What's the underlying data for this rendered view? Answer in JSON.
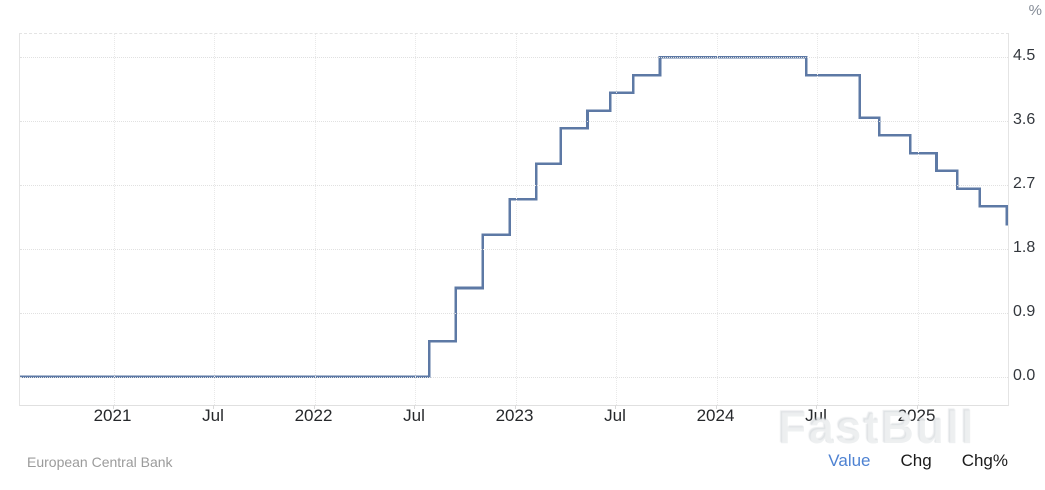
{
  "unit_label": "%",
  "watermark_text": "FastBull",
  "footer": {
    "source": "European Central Bank",
    "legend": [
      {
        "label": "Value",
        "active": true
      },
      {
        "label": "Chg",
        "active": false
      },
      {
        "label": "Chg%",
        "active": false
      }
    ]
  },
  "colors": {
    "line": "#5d79a5",
    "legend_active": "#4e82d2",
    "legend_inactive": "#1b1b1b",
    "grid_h": "#e1e1e1",
    "grid_v": "#e9e9e9"
  },
  "chart_data": {
    "type": "line",
    "subtype": "step-after",
    "title": "",
    "ylabel": "%",
    "source": "European Central Bank",
    "grid": true,
    "legend_position": "bottom-right",
    "xlim": [
      2020.535,
      2025.45
    ],
    "ylim": [
      -0.4,
      4.83
    ],
    "initial_value": 0.0,
    "steps": [
      {
        "date": "2022-07-27",
        "value": 0.5
      },
      {
        "date": "2022-09-14",
        "value": 1.25
      },
      {
        "date": "2022-11-02",
        "value": 2.0
      },
      {
        "date": "2022-12-21",
        "value": 2.5
      },
      {
        "date": "2023-02-08",
        "value": 3.0
      },
      {
        "date": "2023-03-22",
        "value": 3.5
      },
      {
        "date": "2023-05-10",
        "value": 3.75
      },
      {
        "date": "2023-06-21",
        "value": 4.0
      },
      {
        "date": "2023-08-02",
        "value": 4.25
      },
      {
        "date": "2023-09-20",
        "value": 4.5
      },
      {
        "date": "2024-06-12",
        "value": 4.25
      },
      {
        "date": "2024-09-18",
        "value": 3.65
      },
      {
        "date": "2024-10-23",
        "value": 3.4
      },
      {
        "date": "2024-12-18",
        "value": 3.15
      },
      {
        "date": "2025-02-05",
        "value": 2.9
      },
      {
        "date": "2025-03-12",
        "value": 2.65
      },
      {
        "date": "2025-04-23",
        "value": 2.4
      },
      {
        "date": "2025-06-11",
        "value": 2.15
      }
    ],
    "x_ticks": [
      {
        "label": "2021",
        "x": 2021.0
      },
      {
        "label": "Jul",
        "x": 2021.5
      },
      {
        "label": "2022",
        "x": 2022.0
      },
      {
        "label": "Jul",
        "x": 2022.5
      },
      {
        "label": "2023",
        "x": 2023.0
      },
      {
        "label": "Jul",
        "x": 2023.5
      },
      {
        "label": "2024",
        "x": 2024.0
      },
      {
        "label": "Jul",
        "x": 2024.5
      },
      {
        "label": "2025",
        "x": 2025.0
      }
    ],
    "y_ticks": [
      {
        "label": "4.5",
        "value": 4.5
      },
      {
        "label": "3.6",
        "value": 3.6
      },
      {
        "label": "2.7",
        "value": 2.7
      },
      {
        "label": "1.8",
        "value": 1.8
      },
      {
        "label": "0.9",
        "value": 0.9
      },
      {
        "label": "0.0",
        "value": 0.0
      }
    ]
  }
}
